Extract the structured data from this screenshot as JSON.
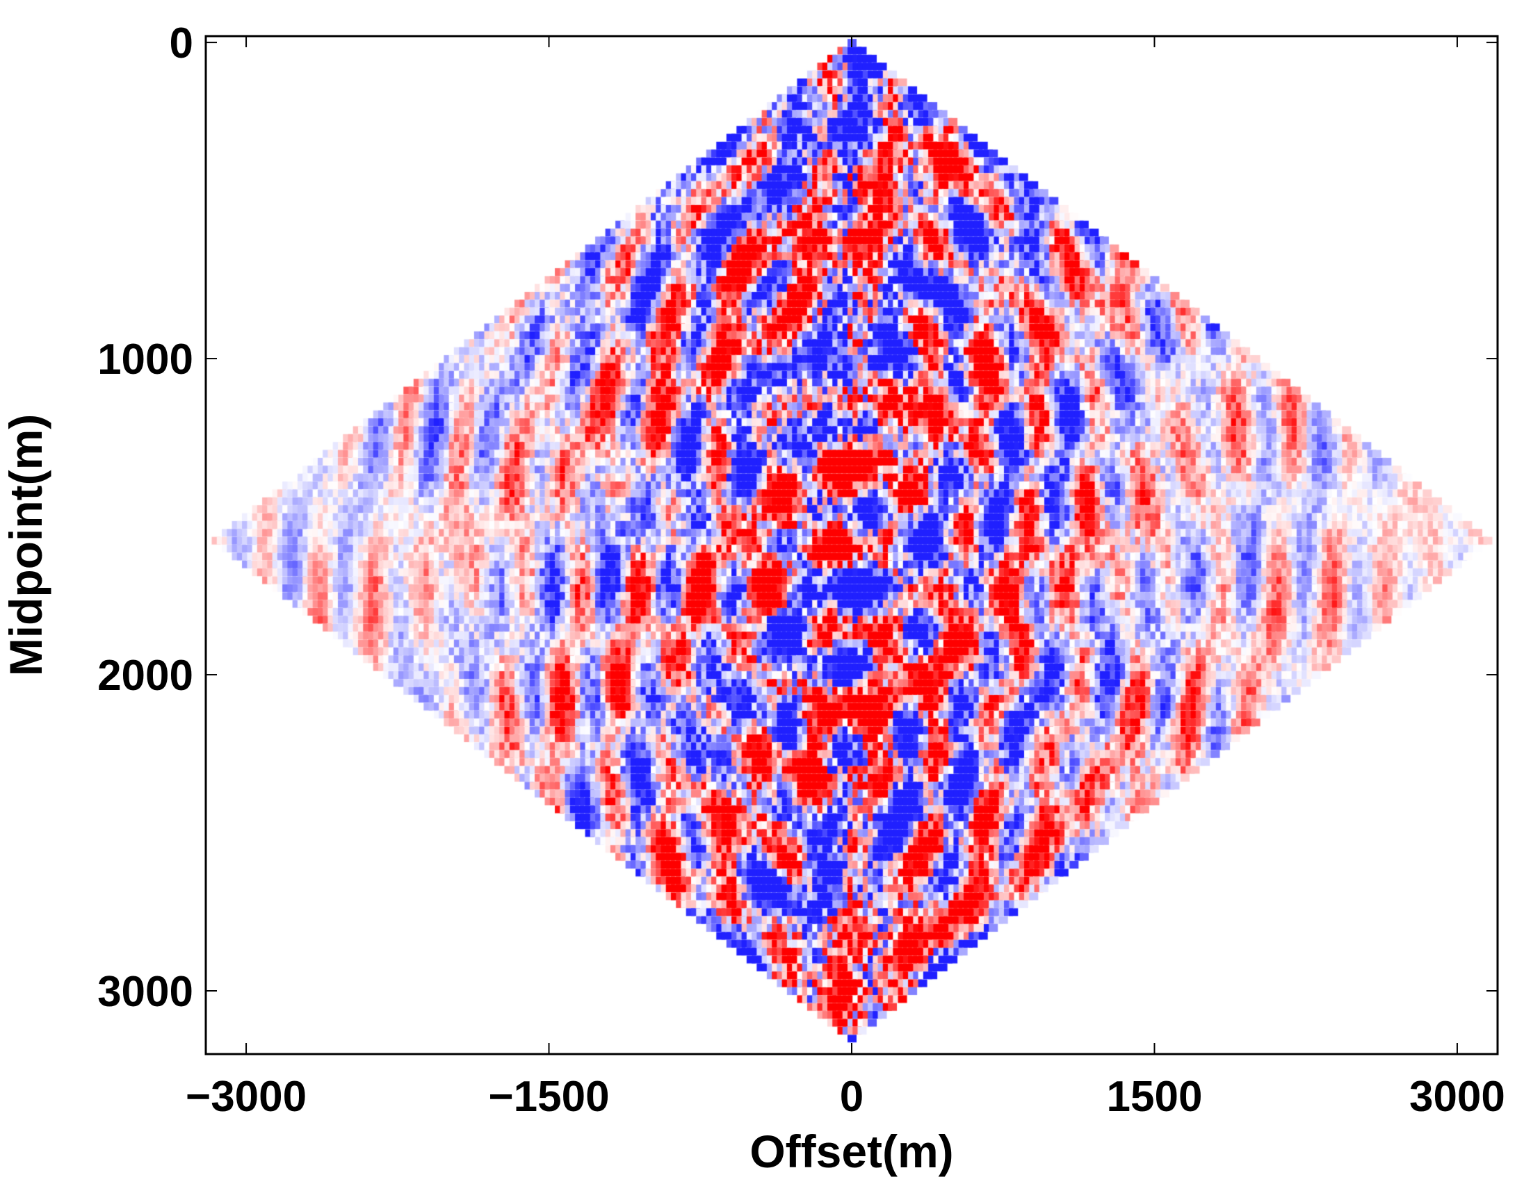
{
  "chart_data": {
    "type": "heatmap",
    "title": "",
    "xlabel": "Offset(m)",
    "ylabel": "Midpoint(m)",
    "xlim": [
      -3200,
      3200
    ],
    "ylim": [
      3200,
      -20
    ],
    "x_ticks": [
      -3000,
      -1500,
      0,
      1500,
      3000
    ],
    "x_tick_labels": [
      "−3000",
      "−1500",
      "0",
      "1500",
      "3000"
    ],
    "y_ticks": [
      0,
      1000,
      2000,
      3000
    ],
    "y_tick_labels": [
      "0",
      "1000",
      "2000",
      "3000"
    ],
    "grid": false,
    "colormap": {
      "negative": "#ff0000",
      "zero": "#ffffff",
      "positive": "#2020ff"
    },
    "data_domain": {
      "shape": "diamond",
      "vertices_offset_midpoint": [
        [
          0,
          0
        ],
        [
          3150,
          1575
        ],
        [
          0,
          3150
        ],
        [
          -3150,
          1575
        ]
      ]
    },
    "cell_size_m": 50,
    "description_of_values": "seismic amplitude in offset-midpoint domain; strongest amplitudes near zero offset, decaying toward far offsets"
  }
}
